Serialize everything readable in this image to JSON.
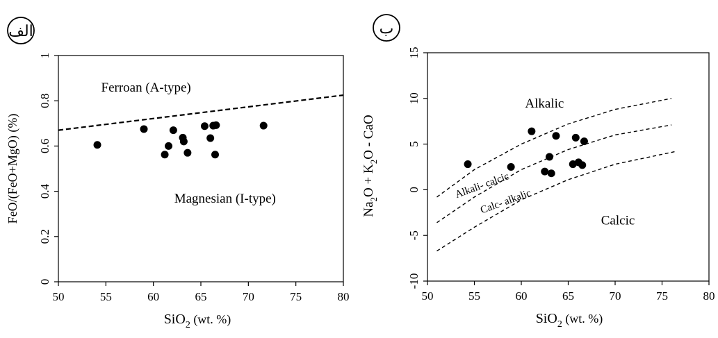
{
  "chart_data": [
    {
      "type": "scatter",
      "panel_label": "الف",
      "xlabel_main": "SiO",
      "xlabel_sub": "2",
      "xlabel_tail": " (wt. %)",
      "ylabel": "FeO/(FeO+MgO) (%)",
      "xlim": [
        50,
        80
      ],
      "ylim": [
        0,
        1
      ],
      "x_ticks": [
        "50",
        "55",
        "60",
        "65",
        "70",
        "75",
        "80"
      ],
      "y_ticks": [
        "0",
        "0.2",
        "0.4",
        "0.6",
        "0.8",
        "1"
      ],
      "grid": false,
      "boundary_line": {
        "style": "dashed",
        "x": [
          50,
          80
        ],
        "y": [
          0.67,
          0.825
        ]
      },
      "annotations": [
        {
          "text": "Ferroan (A-type)",
          "x": 54.5,
          "y": 0.84
        },
        {
          "text": "Magnesian (I-type)",
          "x": 62.2,
          "y": 0.35
        }
      ],
      "points": [
        {
          "x": 54.1,
          "y": 0.605
        },
        {
          "x": 59.0,
          "y": 0.675
        },
        {
          "x": 61.2,
          "y": 0.562
        },
        {
          "x": 61.6,
          "y": 0.6
        },
        {
          "x": 62.1,
          "y": 0.67
        },
        {
          "x": 63.1,
          "y": 0.637
        },
        {
          "x": 63.2,
          "y": 0.62
        },
        {
          "x": 63.6,
          "y": 0.57
        },
        {
          "x": 65.4,
          "y": 0.688
        },
        {
          "x": 66.0,
          "y": 0.635
        },
        {
          "x": 66.3,
          "y": 0.69
        },
        {
          "x": 66.6,
          "y": 0.692
        },
        {
          "x": 66.5,
          "y": 0.562
        },
        {
          "x": 71.6,
          "y": 0.69
        }
      ]
    },
    {
      "type": "scatter",
      "panel_label": "ب",
      "xlabel_main": "SiO",
      "xlabel_sub": "2",
      "xlabel_tail": " (wt. %)",
      "ylabel_parts": [
        "Na",
        "2",
        "O + K",
        "2",
        "O - CaO"
      ],
      "xlim": [
        50,
        80
      ],
      "ylim": [
        -10,
        15
      ],
      "x_ticks": [
        "50",
        "55",
        "60",
        "65",
        "70",
        "75",
        "80"
      ],
      "y_ticks": [
        "-10",
        "-5",
        "0",
        "5",
        "10",
        "15"
      ],
      "grid": false,
      "boundary_lines": [
        {
          "style": "dashed",
          "x": [
            51,
            55,
            60,
            65,
            70,
            76
          ],
          "y": [
            -0.8,
            2.2,
            5.0,
            7.2,
            8.8,
            10.0
          ]
        },
        {
          "style": "dashed",
          "x": [
            51,
            55,
            60,
            65,
            70,
            76
          ],
          "y": [
            -3.6,
            -0.8,
            2.2,
            4.4,
            6.0,
            7.1
          ]
        },
        {
          "style": "dashed",
          "x": [
            51,
            55,
            60,
            65,
            70,
            76.5
          ],
          "y": [
            -6.7,
            -4.1,
            -1.1,
            1.1,
            2.8,
            4.2
          ]
        }
      ],
      "annotations": [
        {
          "text": "Alkalic",
          "x": 60.4,
          "y": 9.0,
          "rotate": 0
        },
        {
          "text": "Alkali- calcic",
          "x": 53.1,
          "y": -0.9,
          "rotate": -20
        },
        {
          "text": "Calc- alkalic",
          "x": 55.8,
          "y": -2.6,
          "rotate": -20
        },
        {
          "text": "Calcic",
          "x": 68.5,
          "y": -3.8,
          "rotate": 0
        }
      ],
      "points": [
        {
          "x": 54.3,
          "y": 2.8
        },
        {
          "x": 58.9,
          "y": 2.5
        },
        {
          "x": 61.1,
          "y": 6.4
        },
        {
          "x": 62.5,
          "y": 2.0
        },
        {
          "x": 63.0,
          "y": 3.6
        },
        {
          "x": 63.2,
          "y": 1.8
        },
        {
          "x": 63.7,
          "y": 5.9
        },
        {
          "x": 65.5,
          "y": 2.8
        },
        {
          "x": 65.8,
          "y": 5.7
        },
        {
          "x": 66.1,
          "y": 3.0
        },
        {
          "x": 66.5,
          "y": 2.7
        },
        {
          "x": 66.7,
          "y": 5.3
        }
      ]
    }
  ]
}
